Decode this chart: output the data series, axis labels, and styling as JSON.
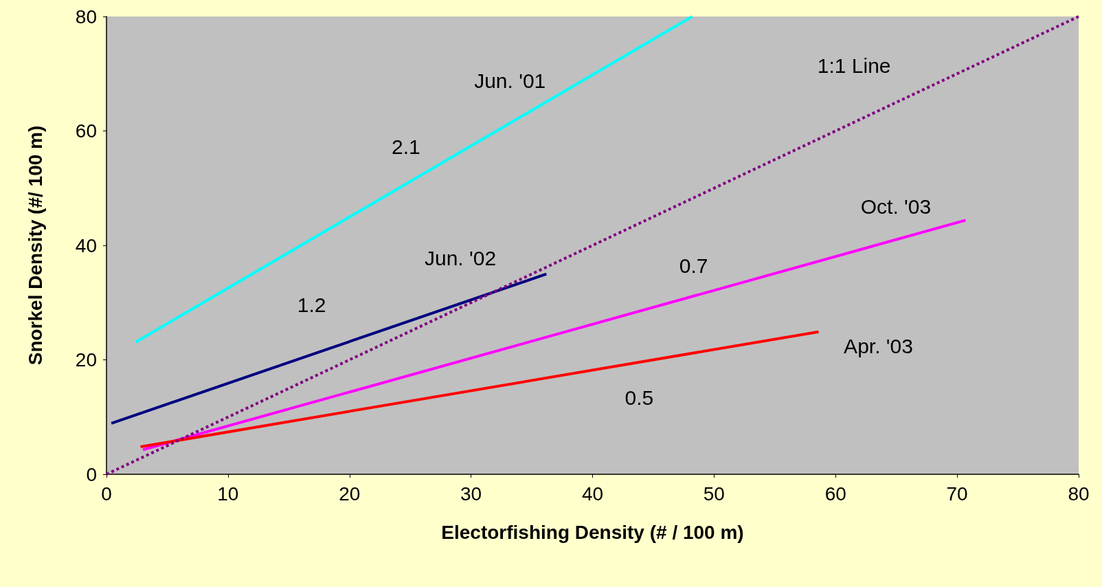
{
  "chart_data": {
    "type": "line",
    "xlabel": "Electorfishing Density (# / 100 m)",
    "ylabel": "Snorkel Density (#/ 100 m)",
    "xlim": [
      0,
      80
    ],
    "xticks": [
      0,
      10,
      20,
      30,
      40,
      50,
      60,
      70,
      80
    ],
    "ylim": [
      0,
      80
    ],
    "yticks": [
      0,
      20,
      40,
      60,
      80
    ],
    "grid": false,
    "marker": "none",
    "line_style": "solid",
    "series": [
      {
        "name": "Jun. '01",
        "color": "#00ffff",
        "x": [
          2.4,
          48.2
        ],
        "values": [
          23.1,
          80
        ]
      },
      {
        "name": "Jun. '02",
        "color": "#000080",
        "x": [
          0.4,
          36.2
        ],
        "values": [
          8.9,
          35
        ]
      },
      {
        "name": "Oct. '03",
        "color": "#ff00ff",
        "x": [
          3,
          70.7
        ],
        "values": [
          4.3,
          44.4
        ]
      },
      {
        "name": "Apr. '03",
        "color": "#ff0000",
        "x": [
          2.8,
          58.6
        ],
        "values": [
          4.8,
          24.9
        ]
      },
      {
        "name": "1:1 Line",
        "color": "#800080",
        "x": [
          0,
          80
        ],
        "values": [
          0,
          80
        ],
        "line_style": "dotted"
      }
    ],
    "annotations": [
      "2.1",
      "1.2",
      "0.7",
      "0.5"
    ]
  }
}
